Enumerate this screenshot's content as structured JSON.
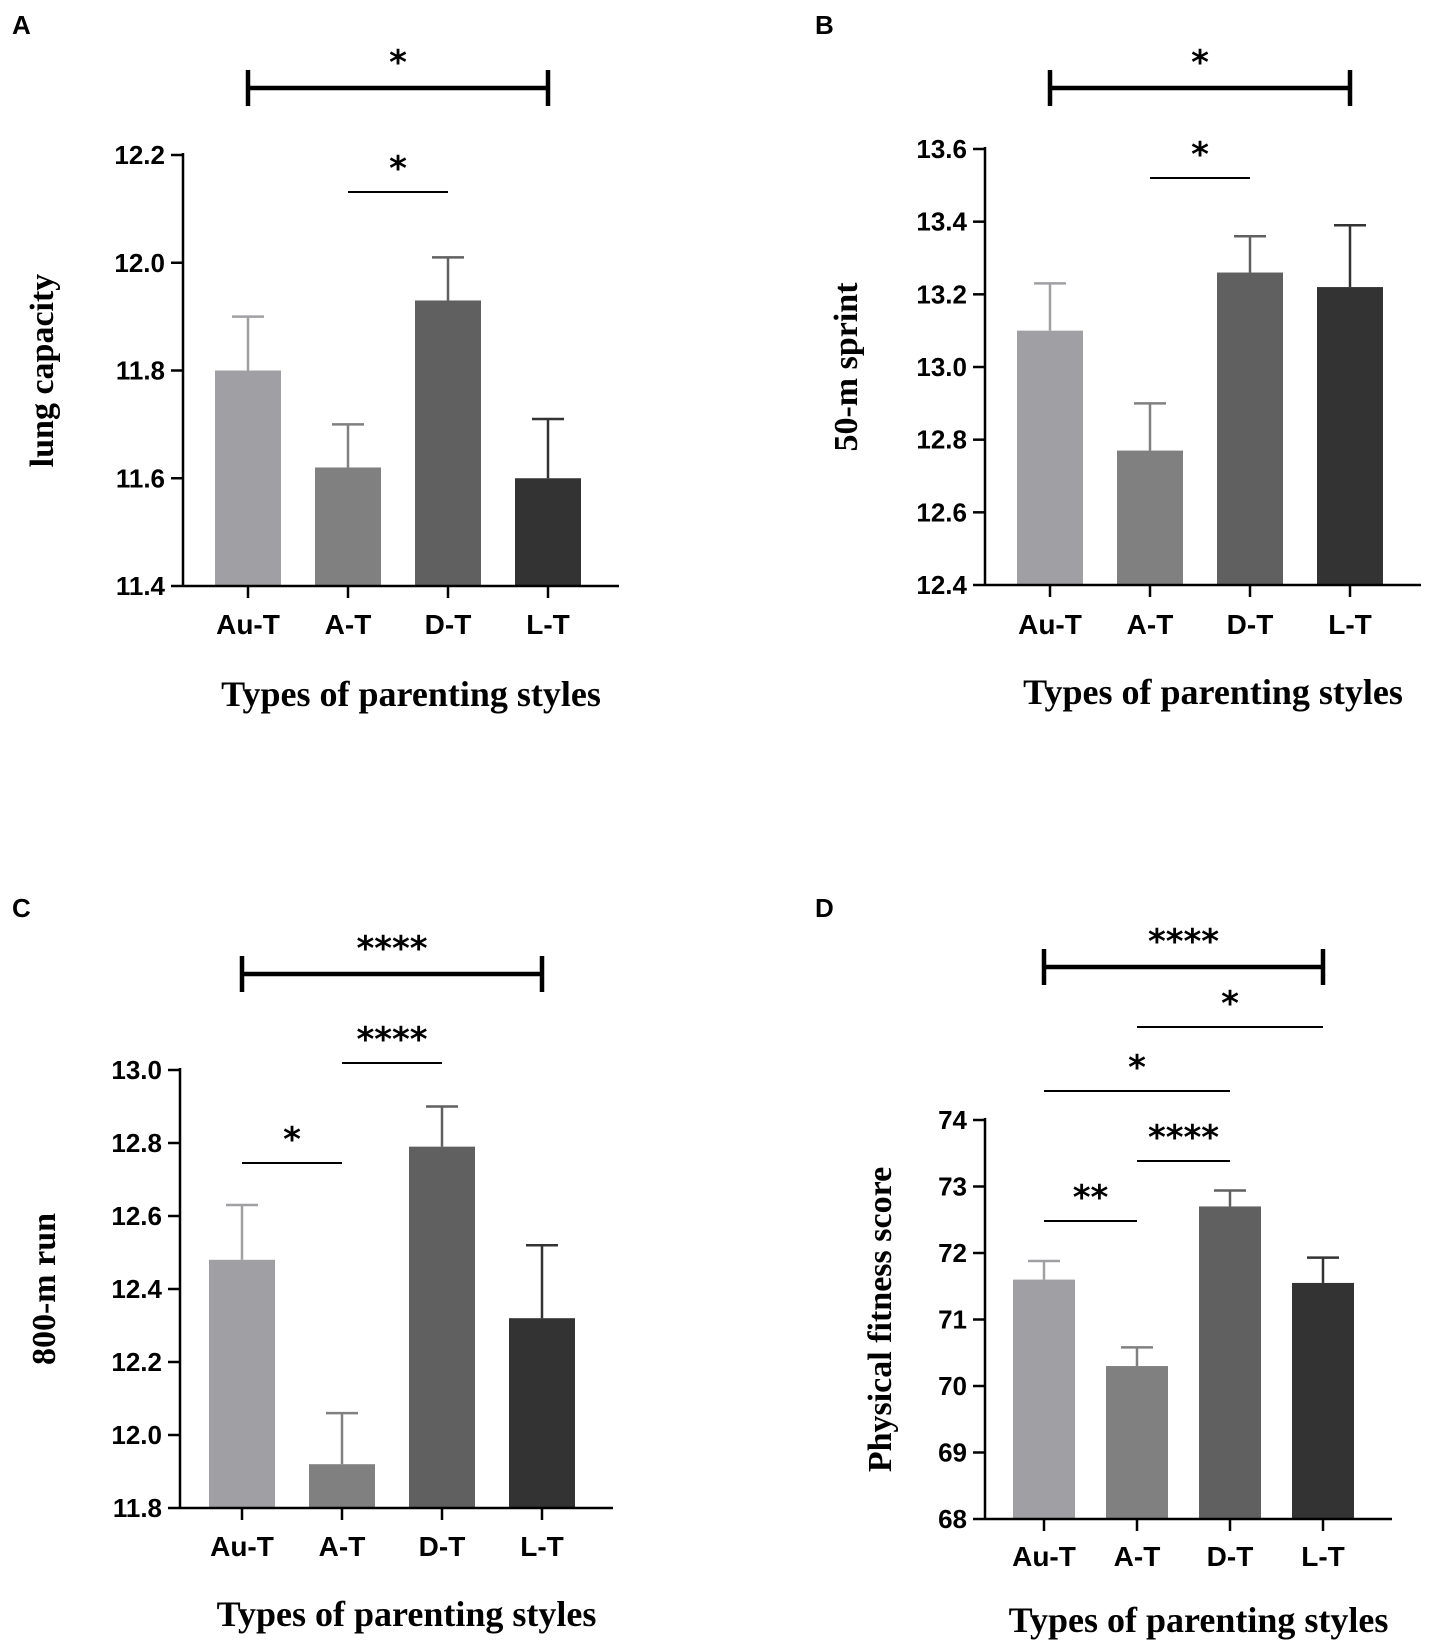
{
  "chart_data": [
    {
      "type": "bar",
      "panel": "A",
      "categories": [
        "Au-T",
        "A-T",
        "D-T",
        "L-T"
      ],
      "values": [
        11.8,
        11.62,
        11.93,
        11.6
      ],
      "errors": [
        0.1,
        0.08,
        0.08,
        0.11
      ],
      "ylabel": "lung capacity",
      "xlabel": "Types of parenting styles",
      "ylim": [
        11.4,
        12.2
      ],
      "yticks": [
        "11.4",
        "11.6",
        "11.8",
        "12.0",
        "12.2"
      ],
      "significance": [
        {
          "from": 0,
          "to": 3,
          "label": "*",
          "style": "bracket"
        },
        {
          "from": 1,
          "to": 2,
          "label": "*",
          "style": "line"
        }
      ]
    },
    {
      "type": "bar",
      "panel": "B",
      "categories": [
        "Au-T",
        "A-T",
        "D-T",
        "L-T"
      ],
      "values": [
        13.1,
        12.77,
        13.26,
        13.22
      ],
      "errors": [
        0.13,
        0.13,
        0.1,
        0.17
      ],
      "ylabel": "50-m sprint",
      "xlabel": "Types of parenting styles",
      "ylim": [
        12.4,
        13.6
      ],
      "yticks": [
        "12.4",
        "12.6",
        "12.8",
        "13.0",
        "13.2",
        "13.4",
        "13.6"
      ],
      "significance": [
        {
          "from": 0,
          "to": 3,
          "label": "*",
          "style": "bracket"
        },
        {
          "from": 1,
          "to": 2,
          "label": "*",
          "style": "line"
        }
      ]
    },
    {
      "type": "bar",
      "panel": "C",
      "categories": [
        "Au-T",
        "A-T",
        "D-T",
        "L-T"
      ],
      "values": [
        12.48,
        11.92,
        12.79,
        12.32
      ],
      "errors": [
        0.15,
        0.14,
        0.11,
        0.2
      ],
      "ylabel": "800-m run",
      "xlabel": "Types of parenting styles",
      "ylim": [
        11.8,
        13.0
      ],
      "yticks": [
        "11.8",
        "12.0",
        "12.2",
        "12.4",
        "12.6",
        "12.8",
        "13.0"
      ],
      "significance": [
        {
          "from": 0,
          "to": 3,
          "label": "****",
          "style": "bracket"
        },
        {
          "from": 1,
          "to": 2,
          "label": "****",
          "style": "line"
        },
        {
          "from": 0,
          "to": 1,
          "label": "*",
          "style": "line"
        }
      ]
    },
    {
      "type": "bar",
      "panel": "D",
      "categories": [
        "Au-T",
        "A-T",
        "D-T",
        "L-T"
      ],
      "values": [
        71.6,
        70.3,
        72.7,
        71.55
      ],
      "errors": [
        0.28,
        0.28,
        0.24,
        0.38
      ],
      "ylabel": "Physical fitness score",
      "xlabel": "Types of parenting styles",
      "ylim": [
        68,
        74
      ],
      "yticks": [
        "68",
        "69",
        "70",
        "71",
        "72",
        "73",
        "74"
      ],
      "significance": [
        {
          "from": 0,
          "to": 3,
          "label": "****",
          "style": "bracket"
        },
        {
          "from": 1,
          "to": 3,
          "label": "*",
          "style": "line"
        },
        {
          "from": 0,
          "to": 2,
          "label": "*",
          "style": "line"
        },
        {
          "from": 1,
          "to": 2,
          "label": "****",
          "style": "line"
        },
        {
          "from": 0,
          "to": 1,
          "label": "**",
          "style": "line"
        }
      ]
    }
  ],
  "colors": {
    "bars": [
      "#a0a0a4",
      "#808080",
      "#606060",
      "#333333"
    ],
    "axis": "#000000"
  }
}
